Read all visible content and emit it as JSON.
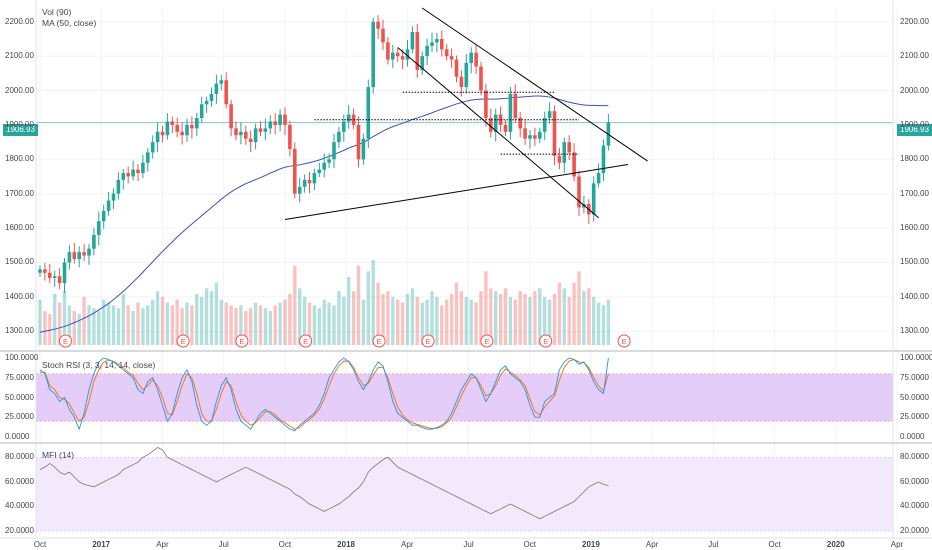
{
  "indicators": {
    "vol": "Vol (90)",
    "ma": "MA (50, close)",
    "stoch": "Stoch RSI (3, 3, 14, 14, close)",
    "mfi": "MFI (14)"
  },
  "last_price": "1906.93",
  "event_marker": "E",
  "colors": {
    "up": "#26a69a",
    "down": "#ef5350",
    "ma": "#3f51b5",
    "stoch_k": "#2196f3",
    "stoch_d": "#ff6d00",
    "stoch_band": "#e1c8f8",
    "mfi_band": "#f3e9fd",
    "mfi_line": "#8d6e63",
    "last_price": "#26a69a",
    "trendline": "#000000"
  },
  "chart_data": [
    {
      "type": "candlestick",
      "interval": "weekly",
      "y_ticks": [
        1300,
        1400,
        1500,
        1600,
        1700,
        1800,
        1900,
        2000,
        2100,
        2200
      ],
      "ylim": [
        1260,
        2240
      ],
      "x_ticks": [
        "Oct",
        "2017",
        "Apr",
        "Jul",
        "Oct",
        "2018",
        "Apr",
        "Jul",
        "Oct",
        "2019",
        "Apr",
        "Jul",
        "Oct",
        "2020",
        "Apr"
      ],
      "x_range": [
        0,
        145
      ],
      "closes": [
        1480,
        1470,
        1455,
        1460,
        1440,
        1500,
        1530,
        1510,
        1530,
        1520,
        1540,
        1580,
        1620,
        1650,
        1680,
        1700,
        1740,
        1760,
        1750,
        1770,
        1760,
        1790,
        1820,
        1850,
        1880,
        1870,
        1910,
        1900,
        1880,
        1870,
        1900,
        1890,
        1920,
        1960,
        1970,
        1990,
        2020,
        2030,
        1960,
        1890,
        1870,
        1880,
        1860,
        1850,
        1890,
        1880,
        1890,
        1910,
        1900,
        1930,
        1900,
        1830,
        1700,
        1720,
        1740,
        1730,
        1760,
        1770,
        1790,
        1800,
        1850,
        1880,
        1910,
        1930,
        1900,
        1800,
        1860,
        2010,
        2200,
        2180,
        2140,
        2090,
        2110,
        2100,
        2090,
        2120,
        2170,
        2060,
        2100,
        2130,
        2140,
        2150,
        2120,
        2100,
        2090,
        2040,
        2010,
        2080,
        2110,
        2070,
        2000,
        1920,
        1880,
        1930,
        1900,
        1880,
        1990,
        1920,
        1890,
        1860,
        1870,
        1860,
        1880,
        1920,
        1940,
        1810,
        1790,
        1850,
        1820,
        1750,
        1660,
        1670,
        1640,
        1730,
        1760,
        1840,
        1906.93
      ],
      "ma50": [
        1297,
        1300,
        1303,
        1306,
        1310,
        1314,
        1319,
        1325,
        1331,
        1338,
        1345,
        1353,
        1362,
        1371,
        1381,
        1392,
        1404,
        1416,
        1429,
        1443,
        1457,
        1472,
        1487,
        1502,
        1517,
        1532,
        1546,
        1560,
        1574,
        1587,
        1600,
        1612,
        1624,
        1636,
        1648,
        1660,
        1672,
        1684,
        1695,
        1705,
        1714,
        1722,
        1729,
        1735,
        1741,
        1747,
        1753,
        1760,
        1766,
        1772,
        1777,
        1780,
        1782,
        1784,
        1787,
        1790,
        1794,
        1798,
        1803,
        1808,
        1814,
        1820,
        1826,
        1833,
        1838,
        1843,
        1849,
        1857,
        1866,
        1874,
        1882,
        1889,
        1895,
        1900,
        1905,
        1910,
        1916,
        1920,
        1925,
        1930,
        1935,
        1941,
        1946,
        1951,
        1956,
        1961,
        1965,
        1969,
        1972,
        1974,
        1975,
        1975,
        1975,
        1975,
        1976,
        1977,
        1979,
        1980,
        1981,
        1982,
        1983,
        1984,
        1984,
        1983,
        1981,
        1978,
        1974,
        1970,
        1966,
        1963,
        1960,
        1958,
        1957,
        1957,
        1956,
        1956,
        1956
      ],
      "volume": [
        80,
        60,
        55,
        90,
        75,
        95,
        70,
        60,
        55,
        85,
        70,
        65,
        60,
        80,
        75,
        70,
        65,
        90,
        70,
        60,
        75,
        65,
        70,
        80,
        95,
        85,
        75,
        70,
        80,
        65,
        75,
        70,
        90,
        85,
        100,
        95,
        110,
        80,
        75,
        70,
        65,
        70,
        60,
        65,
        75,
        70,
        65,
        60,
        70,
        75,
        80,
        90,
        140,
        100,
        85,
        75,
        70,
        65,
        80,
        75,
        70,
        95,
        85,
        120,
        95,
        140,
        80,
        130,
        150,
        110,
        90,
        95,
        85,
        80,
        75,
        90,
        100,
        85,
        75,
        80,
        95,
        85,
        70,
        80,
        90,
        110,
        95,
        85,
        80,
        75,
        95,
        130,
        100,
        95,
        90,
        100,
        85,
        80,
        95,
        90,
        85,
        95,
        100,
        85,
        80,
        90,
        110,
        100,
        85,
        110,
        130,
        95,
        100,
        85,
        75,
        70,
        80
      ]
    },
    {
      "type": "line",
      "name": "Stoch RSI",
      "y_ticks": [
        "0.0000",
        "25.0000",
        "50.0000",
        "75.0000",
        "100.0000"
      ],
      "ylim": [
        -5,
        105
      ],
      "band": [
        20,
        80
      ],
      "k": [
        85,
        80,
        60,
        55,
        45,
        50,
        35,
        25,
        10,
        30,
        60,
        80,
        95,
        100,
        98,
        95,
        90,
        85,
        80,
        75,
        60,
        55,
        70,
        75,
        60,
        40,
        20,
        30,
        55,
        75,
        85,
        70,
        40,
        20,
        15,
        20,
        45,
        65,
        75,
        60,
        35,
        20,
        15,
        10,
        20,
        30,
        35,
        30,
        25,
        20,
        15,
        10,
        8,
        15,
        20,
        25,
        30,
        40,
        55,
        75,
        85,
        95,
        100,
        95,
        85,
        70,
        60,
        70,
        85,
        95,
        90,
        70,
        45,
        30,
        25,
        20,
        15,
        15,
        12,
        10,
        10,
        12,
        15,
        20,
        30,
        45,
        60,
        70,
        80,
        75,
        60,
        45,
        55,
        70,
        85,
        90,
        80,
        75,
        70,
        60,
        40,
        25,
        25,
        45,
        50,
        55,
        85,
        95,
        100,
        98,
        92,
        95,
        85,
        70,
        60,
        55,
        100
      ],
      "d": [
        82,
        82,
        65,
        60,
        50,
        48,
        42,
        30,
        20,
        25,
        45,
        70,
        85,
        95,
        97,
        96,
        92,
        88,
        82,
        78,
        68,
        60,
        65,
        72,
        65,
        50,
        30,
        28,
        45,
        65,
        80,
        75,
        55,
        30,
        20,
        20,
        35,
        55,
        70,
        65,
        45,
        28,
        20,
        15,
        18,
        25,
        32,
        32,
        28,
        22,
        18,
        14,
        10,
        12,
        18,
        22,
        28,
        35,
        48,
        65,
        80,
        90,
        96,
        96,
        88,
        75,
        65,
        68,
        78,
        88,
        88,
        75,
        55,
        38,
        28,
        22,
        18,
        16,
        14,
        12,
        11,
        11,
        13,
        18,
        25,
        38,
        52,
        65,
        75,
        75,
        65,
        52,
        55,
        65,
        78,
        86,
        82,
        78,
        72,
        65,
        48,
        32,
        28,
        38,
        45,
        52,
        72,
        88,
        96,
        98,
        95,
        94,
        88,
        75,
        65,
        58,
        80
      ]
    },
    {
      "type": "line",
      "name": "MFI",
      "y_ticks": [
        "20.0000",
        "40.0000",
        "60.0000",
        "80.0000"
      ],
      "ylim": [
        16,
        90
      ],
      "band": [
        20,
        80
      ],
      "values": [
        70,
        72,
        75,
        72,
        68,
        66,
        68,
        64,
        60,
        58,
        57,
        56,
        58,
        60,
        62,
        64,
        66,
        70,
        72,
        74,
        76,
        80,
        82,
        85,
        88,
        86,
        80,
        78,
        76,
        74,
        72,
        70,
        68,
        66,
        64,
        62,
        60,
        62,
        64,
        66,
        68,
        70,
        72,
        70,
        68,
        66,
        64,
        62,
        60,
        58,
        56,
        54,
        50,
        48,
        45,
        42,
        40,
        38,
        36,
        38,
        40,
        42,
        45,
        48,
        52,
        55,
        60,
        68,
        72,
        75,
        78,
        80,
        76,
        72,
        70,
        68,
        66,
        64,
        62,
        60,
        58,
        56,
        54,
        52,
        50,
        48,
        46,
        44,
        42,
        40,
        38,
        36,
        34,
        36,
        38,
        40,
        42,
        40,
        38,
        36,
        34,
        32,
        30,
        32,
        34,
        36,
        38,
        40,
        42,
        44,
        48,
        52,
        56,
        58,
        60,
        58,
        57
      ]
    }
  ]
}
